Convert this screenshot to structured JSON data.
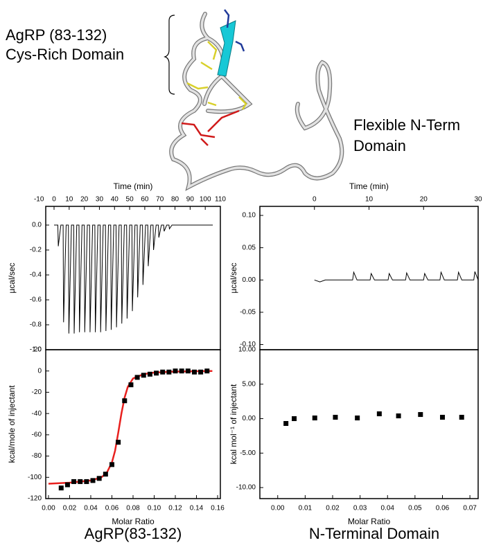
{
  "structure": {
    "label_top_1": "AgRP (83-132)",
    "label_top_2": "Cys-Rich Domain",
    "label_right_1": "Flexible N-Term",
    "label_right_2": "Domain"
  },
  "captions": [
    "AgRP(83-132)",
    "N-Terminal Domain"
  ],
  "chart_data": [
    {
      "type": "line",
      "xlabel": "Time (min)",
      "ylabel": "µcal/sec",
      "xaxis": "top",
      "color": "#000000",
      "x": [
        0,
        2.5,
        2.8,
        4.5,
        6,
        6.3,
        8,
        9.5,
        9.8,
        11.5,
        13,
        13.3,
        15,
        16.5,
        16.8,
        18.5,
        20,
        20.3,
        22,
        23.5,
        23.8,
        25.5,
        27,
        27.3,
        29,
        30.5,
        30.8,
        32.5,
        34,
        34.3,
        36,
        37.5,
        37.8,
        39.5,
        41,
        41.3,
        43,
        44.5,
        44.8,
        46.5,
        48,
        48.3,
        50,
        51.5,
        51.8,
        53.5,
        55,
        55.3,
        57,
        58.5,
        58.8,
        60.5,
        62,
        62.3,
        64,
        65.5,
        65.8,
        67.5,
        69,
        69.3,
        71,
        72.5,
        72.8,
        74.5,
        76,
        76.3,
        78,
        105
      ],
      "values": [
        0,
        0,
        -0.17,
        0,
        0,
        -0.78,
        0,
        0,
        -0.87,
        0,
        0,
        -0.87,
        0,
        0,
        -0.86,
        0,
        0,
        -0.86,
        0,
        0,
        -0.86,
        0,
        0,
        -0.86,
        0,
        0,
        -0.86,
        0,
        0,
        -0.85,
        0,
        0,
        -0.84,
        0,
        0,
        -0.82,
        0,
        0,
        -0.79,
        0,
        0,
        -0.75,
        0,
        0,
        -0.69,
        0,
        0,
        -0.58,
        0,
        0,
        -0.48,
        0,
        0,
        -0.33,
        0,
        0,
        -0.2,
        0,
        0,
        -0.1,
        0,
        0,
        -0.05,
        0,
        0,
        -0.03,
        0,
        0
      ],
      "xlim": [
        -5.5,
        110
      ],
      "xticks": [
        -10,
        0,
        10,
        20,
        30,
        40,
        50,
        60,
        70,
        80,
        90,
        100,
        110
      ],
      "ylim": [
        -1.0,
        0.15
      ],
      "yticks": [
        {
          "value": 0,
          "label": "0.0"
        },
        -0.2,
        -0.4,
        -0.6,
        -0.8,
        {
          "value": -1,
          "label": "-1.0"
        }
      ]
    },
    {
      "type": "scatter",
      "xlabel": "Molar Ratio",
      "ylabel": "kcal/mole of injectant",
      "xaxis": "bottom",
      "points": {
        "color": "#000000",
        "x": [
          0.012,
          0.018,
          0.024,
          0.03,
          0.036,
          0.042,
          0.048,
          0.054,
          0.06,
          0.066,
          0.072,
          0.078,
          0.084,
          0.09,
          0.096,
          0.102,
          0.108,
          0.114,
          0.12,
          0.126,
          0.132,
          0.138,
          0.144,
          0.15
        ],
        "values": [
          -110,
          -107,
          -104,
          -104,
          -104,
          -103,
          -101,
          -97,
          -88,
          -67,
          -28,
          -13,
          -6,
          -4,
          -3,
          -2,
          -1,
          -1,
          0,
          0,
          0,
          -1,
          -1,
          0
        ]
      },
      "fit": {
        "color": "#e8201e",
        "x": [
          0.0,
          0.02,
          0.04,
          0.05,
          0.055,
          0.06,
          0.063,
          0.066,
          0.069,
          0.072,
          0.075,
          0.08,
          0.09,
          0.1,
          0.12,
          0.155
        ],
        "values": [
          -106,
          -105,
          -103,
          -100,
          -96,
          -86,
          -75,
          -58,
          -40,
          -25,
          -15,
          -7,
          -3,
          -1.5,
          -0.5,
          0
        ]
      },
      "xlim": [
        -0.0026,
        0.1626
      ],
      "xticks": [
        {
          "value": 0,
          "label": "0.00"
        },
        0.02,
        0.04,
        0.06,
        0.08,
        {
          "value": 0.1,
          "label": "0.10"
        },
        0.12,
        0.14,
        0.16
      ],
      "ylim": [
        -120,
        20
      ],
      "yticks": [
        -120,
        -100,
        -80,
        -60,
        -40,
        -20,
        0,
        20
      ]
    },
    {
      "type": "line",
      "xlabel": "Time (min)",
      "ylabel": "µcal/sec",
      "xaxis": "top",
      "color": "#000000",
      "x": [
        0,
        1,
        2,
        7,
        7.2,
        7.8,
        10.2,
        10.4,
        11,
        13.5,
        13.7,
        14.3,
        16.7,
        16.9,
        17.5,
        20,
        20.2,
        20.8,
        23,
        23.2,
        23.8,
        26.2,
        26.4,
        27,
        29.2,
        29.4,
        30
      ],
      "values": [
        0,
        -0.003,
        0,
        0,
        0.012,
        0,
        0,
        0.01,
        0,
        0,
        0.01,
        0,
        0,
        0.011,
        0,
        0,
        0.01,
        0,
        0,
        0.012,
        0,
        0,
        0.012,
        0,
        0,
        0.013,
        0
      ],
      "xlim": [
        -10,
        30
      ],
      "xticks": [
        0,
        10,
        20,
        30
      ],
      "ylim": [
        -0.108,
        0.114
      ],
      "yticks": [
        {
          "value": -0.1,
          "label": "-0.10"
        },
        -0.05,
        {
          "value": 0,
          "label": "0.00"
        },
        0.05,
        {
          "value": 0.1,
          "label": "0.10"
        }
      ]
    },
    {
      "type": "scatter",
      "xlabel": "Molar Ratio",
      "ylabel": "kcal mol⁻¹ of injectant",
      "xaxis": "bottom",
      "points": {
        "color": "#000000",
        "x": [
          0.003,
          0.006,
          0.0135,
          0.021,
          0.029,
          0.037,
          0.044,
          0.052,
          0.06,
          0.067
        ],
        "values": [
          -0.7,
          0,
          0.1,
          0.2,
          0.1,
          0.7,
          0.4,
          0.6,
          0.2,
          0.2
        ]
      },
      "xlim": [
        -0.0065,
        0.073
      ],
      "xticks": [
        {
          "value": 0,
          "label": "0.00"
        },
        0.01,
        0.02,
        0.03,
        0.04,
        0.05,
        0.06,
        0.07
      ],
      "ylim": [
        -11.6,
        10
      ],
      "yticks": [
        {
          "value": -10,
          "label": "-10.00"
        },
        {
          "value": -5,
          "label": "-5.00"
        },
        {
          "value": 0,
          "label": "0.00"
        },
        {
          "value": 5,
          "label": "5.00"
        },
        {
          "value": 10,
          "label": "10.00"
        }
      ]
    }
  ]
}
